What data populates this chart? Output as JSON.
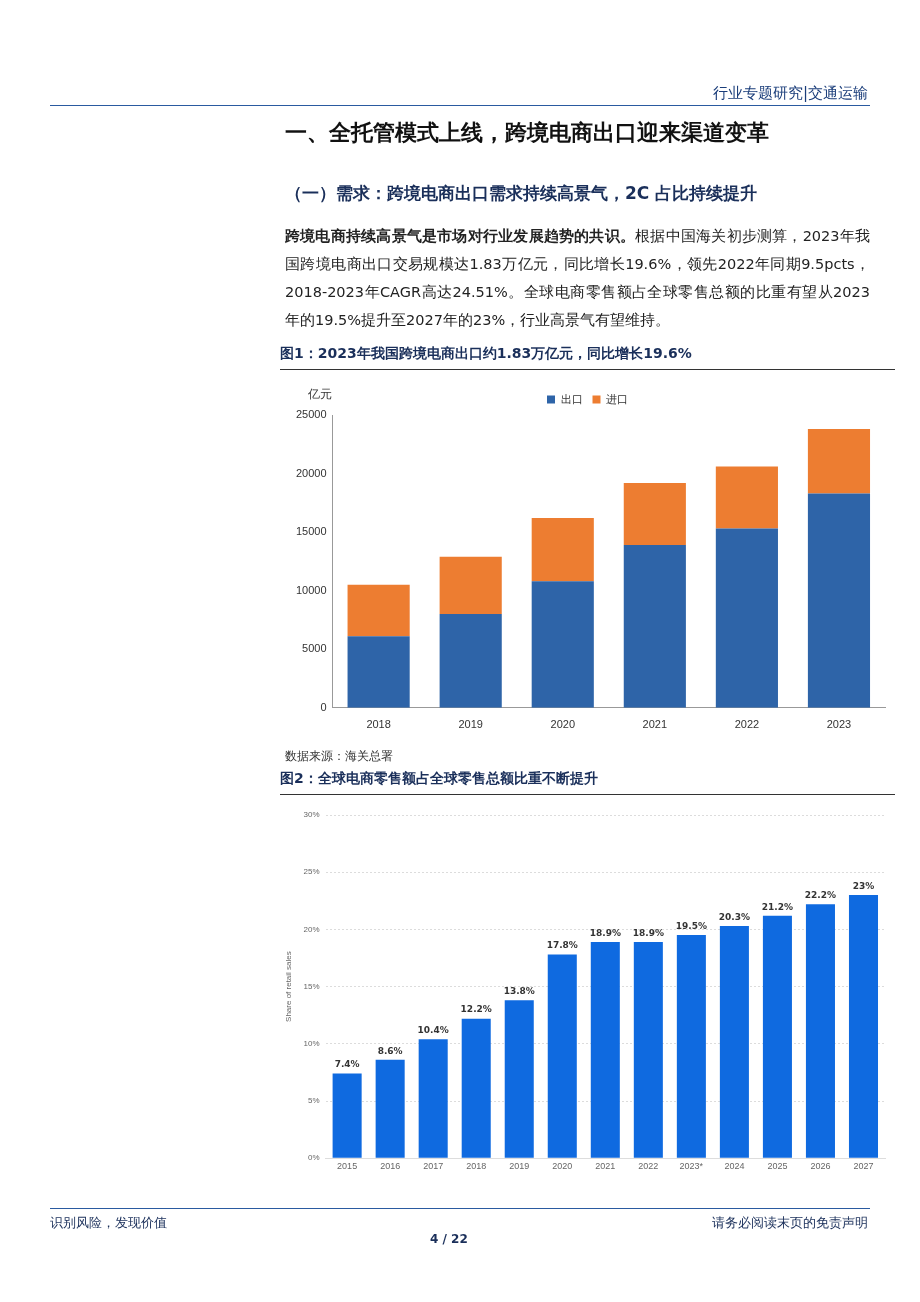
{
  "chart_data": [
    {
      "type": "bar",
      "title": "图1：2023年我国跨境电商出口约1.83万亿元，同比增长19.6%",
      "ylabel": "亿元",
      "categories": [
        "2018",
        "2019",
        "2020",
        "2021",
        "2022",
        "2023"
      ],
      "stacked": true,
      "legend": "top",
      "ylim": [
        0,
        25000
      ],
      "yticks": [
        0,
        5000,
        10000,
        15000,
        20000,
        25000
      ],
      "series": [
        {
          "name": "出口",
          "color": "#2e64a8",
          "values": [
            6100,
            8000,
            10800,
            13900,
            15300,
            18300
          ]
        },
        {
          "name": "进口",
          "color": "#ed7d31",
          "values": [
            4400,
            4900,
            5400,
            5300,
            5300,
            5500
          ]
        }
      ],
      "annotations": [
        "行业专题研究|交通运输",
        "一、全托管模式上线，跨境电商出口迎来渠道变革",
        "（一）需求：跨境电商出口需求持续高景气，2C 占比持续提升",
        "跨境电商持续高景气是市场对行业发展趋势的共识。",
        "根据中国海关初步测算，2023年我国跨境电商出口交易规模达1.83万亿元，同比增长19.6%，领先2022年同期9.5pcts，2018-2023年CAGR高达24.51%。全球电商零售额占全球零售总额的比重有望从2023年的19.5%提升至2027年的23%，行业高景气有望维持。",
        "数据来源：海关总署",
        "识别风险，发现价值",
        "请务必阅读末页的免责声明",
        "4 / 22"
      ]
    },
    {
      "type": "bar",
      "title": "图2：全球电商零售额占全球零售总额比重不断提升",
      "ylabel": "Share of retail sales",
      "categories": [
        "2015",
        "2016",
        "2017",
        "2018",
        "2019",
        "2020",
        "2021",
        "2022",
        "2023*",
        "2024",
        "2025",
        "2026",
        "2027"
      ],
      "grid": "y",
      "ylim": [
        0,
        30
      ],
      "yticks": [
        {
          "value": 0,
          "label": "0%"
        },
        {
          "value": 5,
          "label": "5%"
        },
        {
          "value": 10,
          "label": "10%"
        },
        {
          "value": 15,
          "label": "15%"
        },
        {
          "value": 20,
          "label": "20%"
        },
        {
          "value": 25,
          "label": "25%"
        },
        {
          "value": 30,
          "label": "30%"
        }
      ],
      "series": [
        {
          "color": "#0f6ae0",
          "values": [
            7.4,
            8.6,
            10.4,
            12.2,
            13.8,
            17.8,
            18.9,
            18.9,
            19.5,
            20.3,
            21.2,
            22.2,
            23
          ],
          "value_labels": [
            "7.4%",
            "8.6%",
            "10.4%",
            "12.2%",
            "13.8%",
            "17.8%",
            "18.9%",
            "18.9%",
            "19.5%",
            "20.3%",
            "21.2%",
            "22.2%",
            "23%"
          ]
        }
      ]
    }
  ]
}
